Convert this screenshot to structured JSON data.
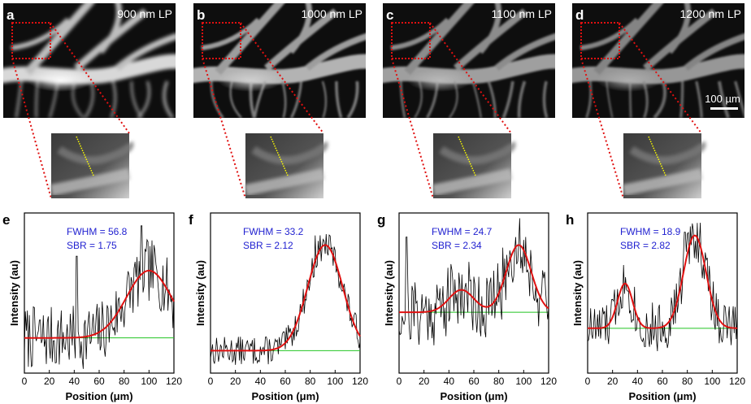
{
  "figure": {
    "panels_top": [
      {
        "letter": "a",
        "filter_label": "900 nm LP"
      },
      {
        "letter": "b",
        "filter_label": "1000 nm LP"
      },
      {
        "letter": "c",
        "filter_label": "1100 nm LP"
      },
      {
        "letter": "d",
        "filter_label": "1200 nm LP"
      }
    ],
    "scale_bar_label": "100 µm",
    "plot_letters": [
      "e",
      "f",
      "g",
      "h"
    ],
    "axis_labels": {
      "x": "Position (μm)",
      "y": "Intensity (au)"
    },
    "colors": {
      "measured": "#000000",
      "fit": "#e01010",
      "baseline": "#22c422",
      "annotation": "#1f1fd0",
      "zoom_box": "#e01010",
      "profile_line": "#ffff00"
    }
  },
  "chart_data": [
    {
      "type": "line",
      "xlabel": "Position (μm)",
      "ylabel": "Intensity (au)",
      "xlim": [
        0,
        120
      ],
      "x_ticks": [
        0,
        20,
        40,
        60,
        80,
        100,
        120
      ],
      "annotation": [
        "FWHM = 56.8",
        "SBR = 1.75"
      ],
      "peaks": [
        {
          "center": 100,
          "amplitude": 0.42,
          "width": 18
        }
      ],
      "baseline": 0.22,
      "noise": 0.2,
      "spikes": [
        {
          "x": 42,
          "y": 0.73
        },
        {
          "x": 94,
          "y": 0.92
        }
      ],
      "seed": 7
    },
    {
      "type": "line",
      "xlabel": "Position (μm)",
      "ylabel": "Intensity (au)",
      "xlim": [
        0,
        120
      ],
      "x_ticks": [
        0,
        20,
        40,
        60,
        80,
        100,
        120
      ],
      "annotation": [
        "FWHM = 33.2",
        "SBR = 2.12"
      ],
      "peaks": [
        {
          "center": 92,
          "amplitude": 0.66,
          "width": 14
        }
      ],
      "baseline": 0.14,
      "noise": 0.09,
      "spikes": [
        {
          "x": 84,
          "y": 0.86
        }
      ],
      "seed": 13
    },
    {
      "type": "line",
      "xlabel": "Position (μm)",
      "ylabel": "Intensity (au)",
      "xlim": [
        0,
        120
      ],
      "x_ticks": [
        0,
        20,
        40,
        60,
        80,
        100,
        120
      ],
      "annotation": [
        "FWHM = 24.7",
        "SBR = 2.34"
      ],
      "peaks": [
        {
          "center": 50,
          "amplitude": 0.14,
          "width": 10
        },
        {
          "center": 96,
          "amplitude": 0.42,
          "width": 10
        }
      ],
      "baseline": 0.38,
      "noise": 0.22,
      "spikes": [
        {
          "x": 6,
          "y": 0.85
        }
      ],
      "seed": 21
    },
    {
      "type": "line",
      "xlabel": "Position (μm)",
      "ylabel": "Intensity (au)",
      "xlim": [
        0,
        120
      ],
      "x_ticks": [
        0,
        20,
        40,
        60,
        80,
        100,
        120
      ],
      "annotation": [
        "FWHM = 18.9",
        "SBR = 2.82"
      ],
      "peaks": [
        {
          "center": 30,
          "amplitude": 0.28,
          "width": 6
        },
        {
          "center": 86,
          "amplitude": 0.58,
          "width": 9
        }
      ],
      "baseline": 0.28,
      "noise": 0.16,
      "spikes": [
        {
          "x": 78,
          "y": 0.88
        }
      ],
      "seed": 33
    }
  ]
}
